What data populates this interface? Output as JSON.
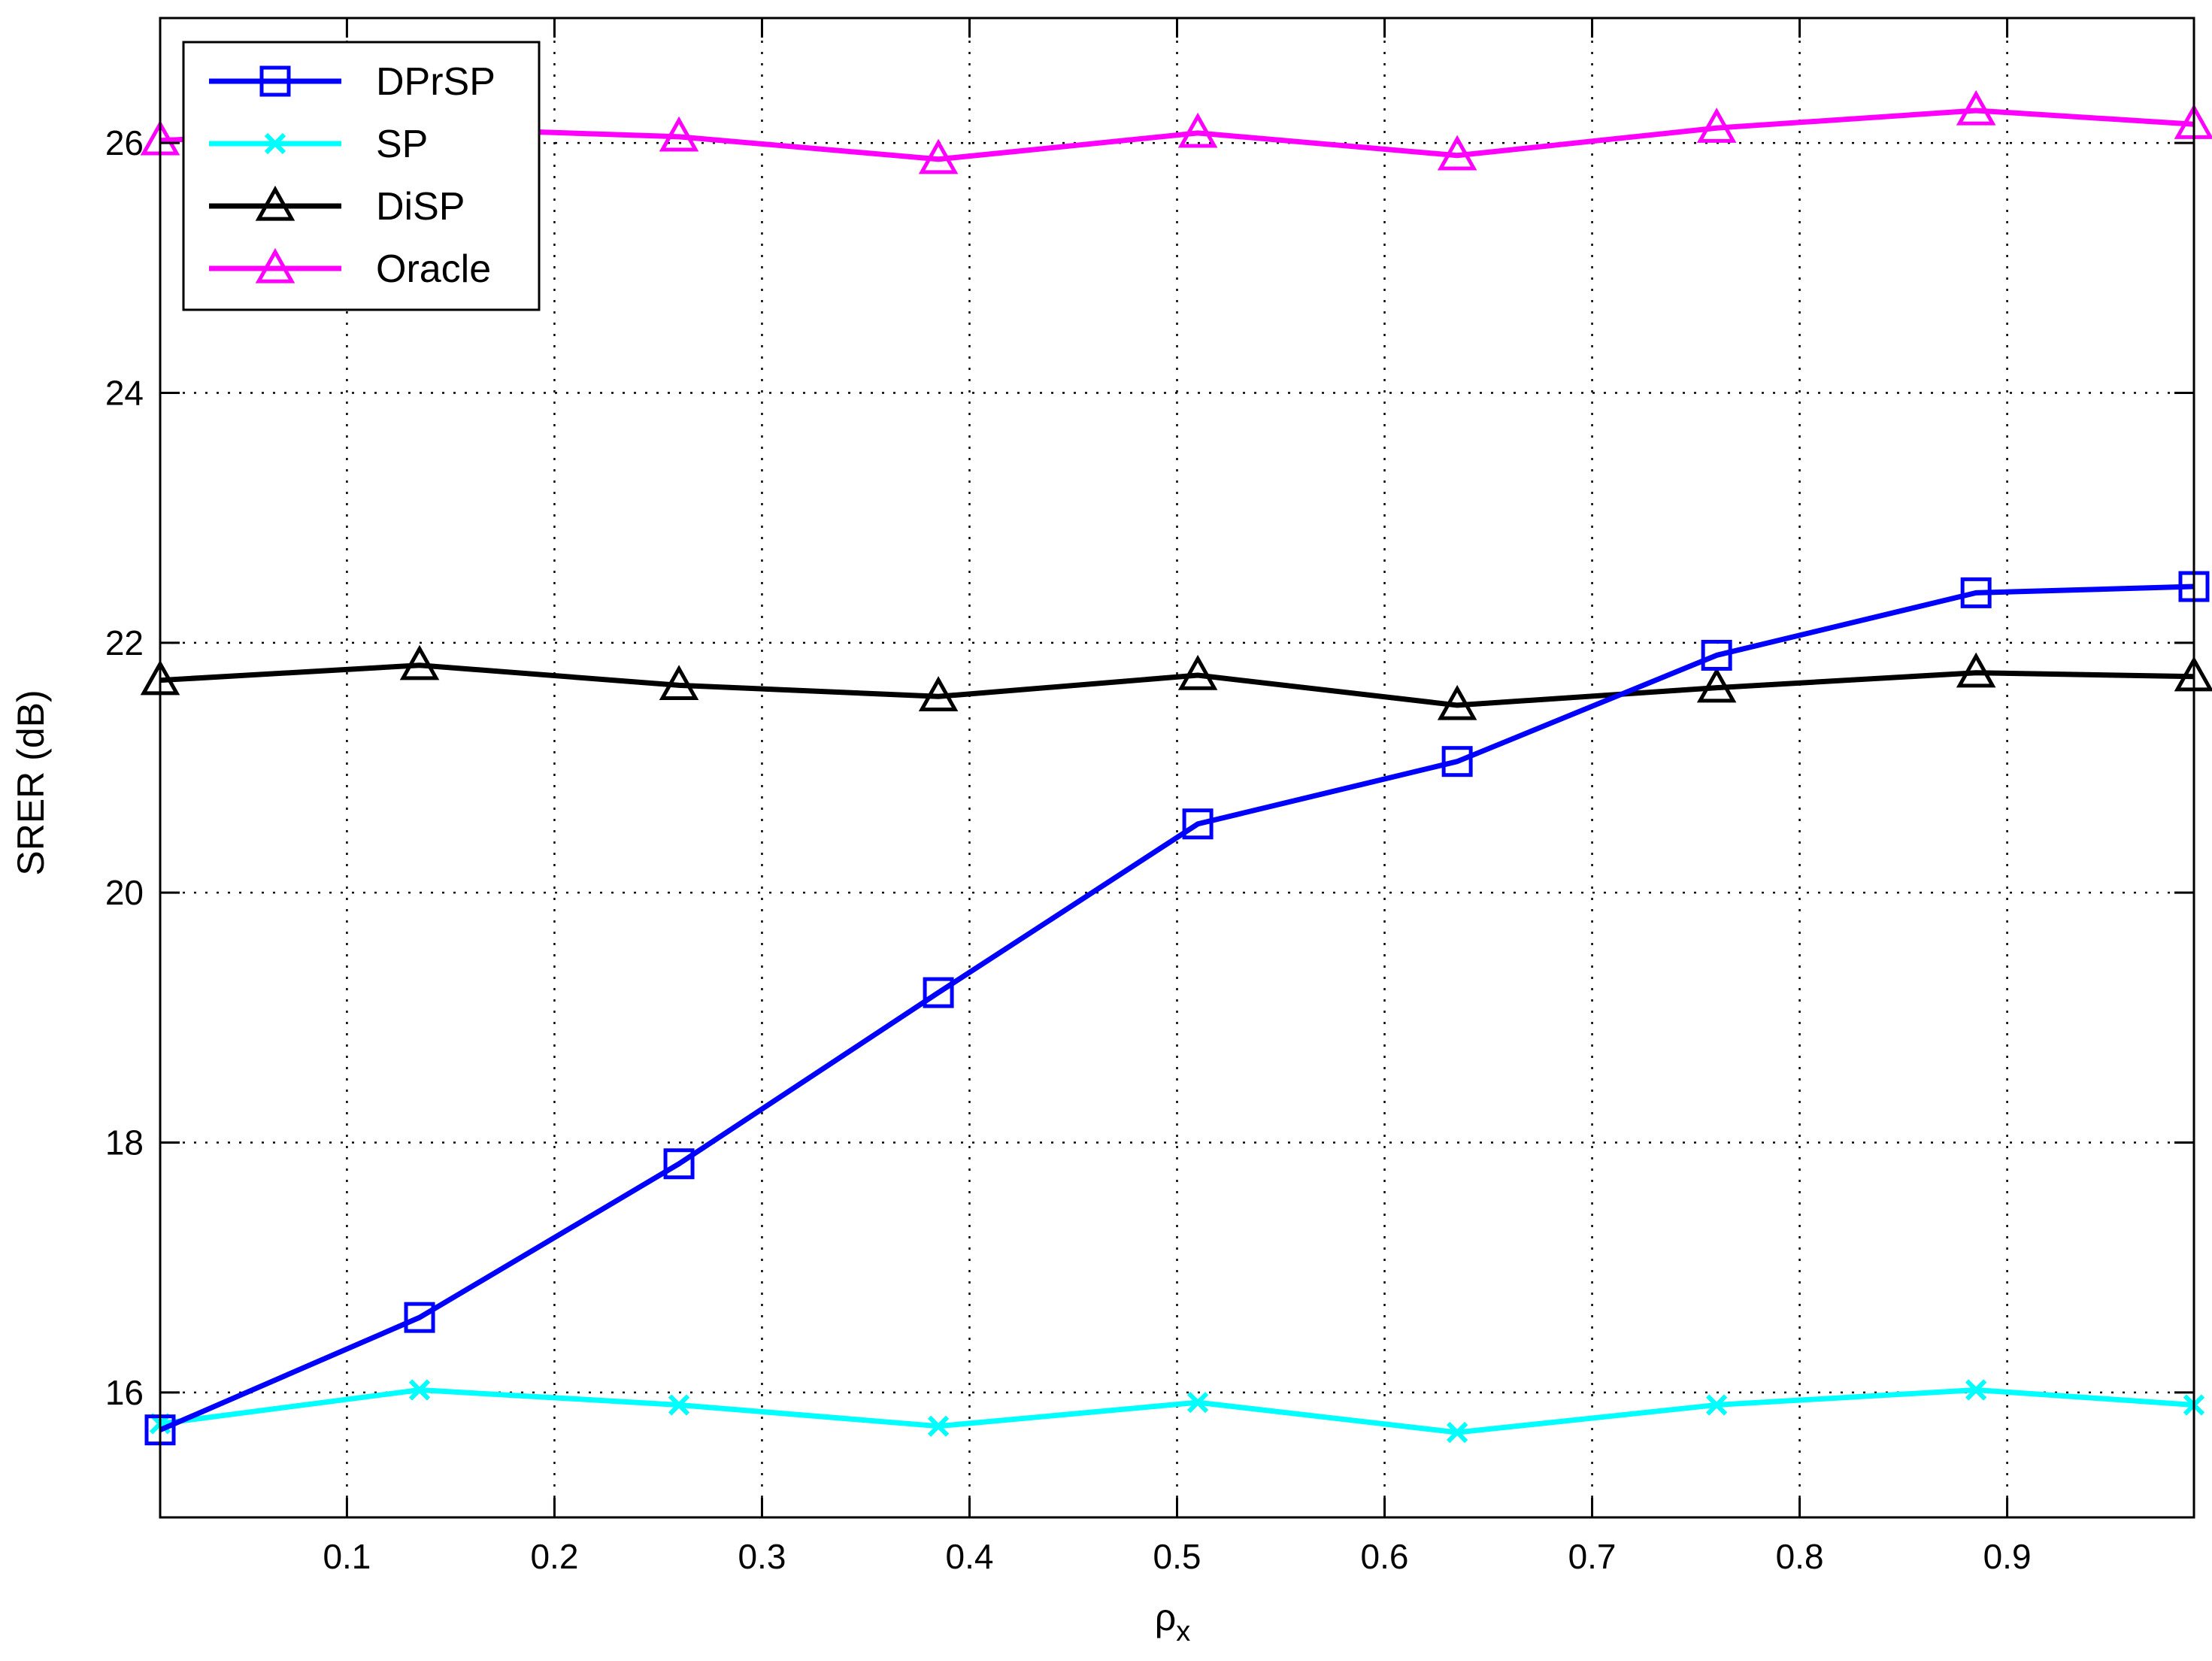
{
  "chart_data": {
    "type": "line",
    "title": "",
    "xlabel": "ρ",
    "xlabel_sub": "x",
    "ylabel": "SRER (dB)",
    "xlim": [
      0.01,
      0.99
    ],
    "ylim": [
      15,
      27
    ],
    "xticks": [
      0.1,
      0.2,
      0.3,
      0.4,
      0.5,
      0.6,
      0.7,
      0.8,
      0.9
    ],
    "xtick_labels": [
      "0.1",
      "0.2",
      "0.3",
      "0.4",
      "0.5",
      "0.6",
      "0.7",
      "0.8",
      "0.9"
    ],
    "yticks": [
      16,
      18,
      20,
      22,
      24,
      26
    ],
    "ytick_labels": [
      "16",
      "18",
      "20",
      "22",
      "24",
      "26"
    ],
    "grid": true,
    "legend_position": "top-left",
    "x": [
      0.01,
      0.135,
      0.26,
      0.385,
      0.51,
      0.635,
      0.76,
      0.885,
      0.99
    ],
    "series": [
      {
        "name": "DPrSP",
        "color": "#0000ff",
        "marker": "square",
        "values": [
          15.7,
          16.6,
          17.83,
          19.2,
          20.55,
          21.05,
          21.9,
          22.4,
          22.45
        ]
      },
      {
        "name": "SP",
        "color": "#00ffff",
        "marker": "x",
        "values": [
          15.75,
          16.02,
          15.9,
          15.73,
          15.92,
          15.68,
          15.9,
          16.02,
          15.9
        ]
      },
      {
        "name": "DiSP",
        "color": "#000000",
        "marker": "triangle",
        "values": [
          21.7,
          21.82,
          21.66,
          21.57,
          21.74,
          21.5,
          21.64,
          21.76,
          21.73
        ]
      },
      {
        "name": "Oracle",
        "color": "#ff00ff",
        "marker": "triangle",
        "values": [
          26.02,
          26.12,
          26.05,
          25.87,
          26.08,
          25.9,
          26.12,
          26.26,
          26.15
        ]
      }
    ]
  }
}
